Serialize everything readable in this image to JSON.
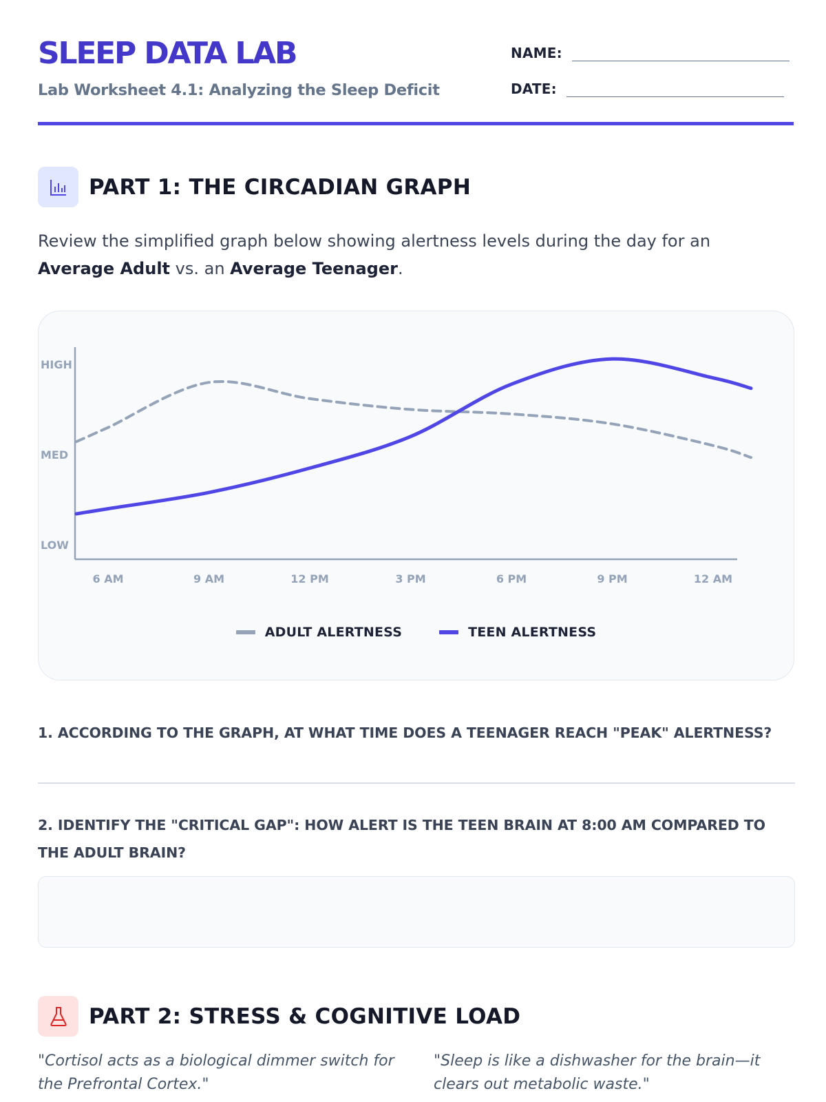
{
  "header": {
    "title": "SLEEP DATA LAB",
    "subtitle": "Lab Worksheet 4.1: Analyzing the Sleep Deficit",
    "name_label": "NAME:",
    "date_label": "DATE:"
  },
  "part1": {
    "icon": "bar-chart-icon",
    "title": "PART 1: THE CIRCADIAN GRAPH",
    "intro_text_1": "Review the simplified graph below showing alertness levels during the day for an ",
    "intro_bold_1": "Average Adult",
    "intro_text_2": " vs. an ",
    "intro_bold_2": "Average Teenager",
    "intro_text_3": "."
  },
  "colors": {
    "accent": "#4f46e5",
    "adult_line": "#94a3b8",
    "teen_line": "#4f46e5"
  },
  "chart_data": {
    "type": "line",
    "x": [
      "6 AM",
      "9 AM",
      "12 PM",
      "3 PM",
      "6 PM",
      "9 PM",
      "12 AM"
    ],
    "y_ticks": [
      "LOW",
      "MED",
      "HIGH"
    ],
    "series": [
      {
        "name": "ADULT ALERTNESS",
        "style": "dashed",
        "color": "#94a3b8",
        "values": [
          1.3,
          1.8,
          1.62,
          1.5,
          1.45,
          1.34,
          1.1
        ]
      },
      {
        "name": "TEEN ALERTNESS",
        "style": "solid",
        "color": "#4f46e5",
        "values": [
          0.4,
          0.58,
          0.85,
          1.2,
          1.78,
          2.06,
          1.85
        ]
      }
    ],
    "legend": "bottom-center",
    "grid": false
  },
  "questions": {
    "q1": "1. ACCORDING TO THE GRAPH, AT WHAT TIME DOES A TEENAGER REACH \"PEAK\" ALERTNESS?",
    "q2": "2. IDENTIFY THE \"CRITICAL GAP\": HOW ALERT IS THE TEEN BRAIN AT 8:00 AM COMPARED TO THE ADULT BRAIN?"
  },
  "part2": {
    "icon": "flask-icon",
    "title": "PART 2: STRESS & COGNITIVE LOAD",
    "quote_1": "\"Cortisol acts as a biological dimmer switch for the Prefrontal Cortex.\"",
    "quote_2": "\"Sleep is like a dishwasher for the brain—it clears out metabolic waste.\""
  }
}
